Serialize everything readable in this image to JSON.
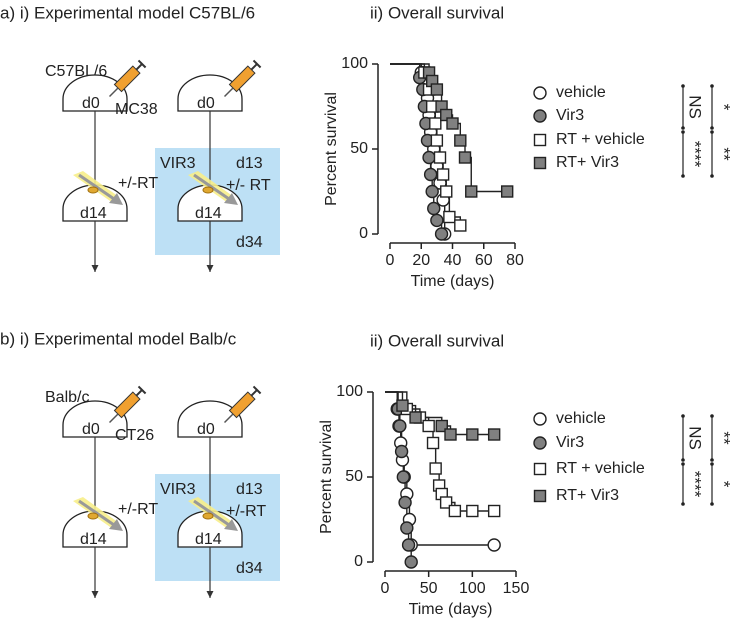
{
  "panels": [
    {
      "title": "a) i) Experimental model C57BL/6",
      "left": {
        "strain": "C57BL/6",
        "day0": "d0",
        "tumor": "MC38",
        "rt": "+/-RT",
        "day14": "d14"
      },
      "right": {
        "day0": "d0",
        "treatment": "VIR3",
        "day13": "d13",
        "rt": "+/- RT",
        "day14": "d14",
        "day34": "d34"
      }
    },
    {
      "title": "b) i) Experimental model Balb/c",
      "left": {
        "strain": "Balb/c",
        "day0": "d0",
        "tumor": "CT26",
        "rt": "+/-RT",
        "day14": "d14"
      },
      "right": {
        "day0": "d0",
        "treatment": "VIR3",
        "day13": "d13",
        "rt": "+/-RT",
        "day14": "d14",
        "day34": "d34"
      }
    }
  ],
  "chart_data": [
    {
      "type": "step",
      "title": "ii) Overall survival",
      "xlabel": "Time (days)",
      "ylabel": "Percent survival",
      "xlim": [
        0,
        80
      ],
      "xticks": [
        0,
        20,
        40,
        60,
        80
      ],
      "ylim": [
        0,
        100
      ],
      "yticks": [
        0,
        50,
        100
      ],
      "series": [
        {
          "name": "vehicle",
          "marker": "circle",
          "color": "#ffffff",
          "x": [
            0,
            20,
            22,
            24,
            25,
            26,
            28,
            30,
            32,
            34,
            35
          ],
          "values": [
            100,
            95,
            90,
            80,
            70,
            60,
            50,
            40,
            30,
            20,
            0
          ]
        },
        {
          "name": "Vir3",
          "marker": "circle",
          "color": "#808080",
          "x": [
            0,
            19,
            21,
            22,
            23,
            24,
            25,
            26,
            27,
            28,
            30,
            33
          ],
          "values": [
            100,
            92,
            85,
            75,
            65,
            55,
            45,
            35,
            25,
            15,
            8,
            0
          ]
        },
        {
          "name": "RT + vehicle",
          "marker": "square",
          "color": "#ffffff",
          "x": [
            0,
            22,
            25,
            27,
            29,
            30,
            32,
            34,
            36,
            38,
            45
          ],
          "values": [
            100,
            95,
            85,
            75,
            65,
            55,
            45,
            35,
            25,
            10,
            5
          ]
        },
        {
          "name": "RT+ Vir3",
          "marker": "square",
          "color": "#808080",
          "x": [
            0,
            25,
            27,
            30,
            33,
            36,
            40,
            45,
            48,
            52,
            75
          ],
          "values": [
            100,
            95,
            90,
            85,
            75,
            70,
            65,
            55,
            45,
            25,
            25
          ]
        }
      ],
      "annotations": [
        "NS",
        "****",
        "*",
        "**"
      ]
    },
    {
      "type": "step",
      "title": "ii) Overall survival",
      "xlabel": "Time (days)",
      "ylabel": "Percent survival",
      "xlim": [
        0,
        150
      ],
      "xticks": [
        0,
        50,
        100,
        150
      ],
      "ylim": [
        0,
        100
      ],
      "yticks": [
        0,
        50,
        100
      ],
      "series": [
        {
          "name": "vehicle",
          "marker": "circle",
          "color": "#ffffff",
          "x": [
            0,
            14,
            16,
            18,
            20,
            22,
            25,
            28,
            30,
            125
          ],
          "values": [
            100,
            90,
            80,
            70,
            60,
            50,
            40,
            25,
            10,
            10
          ]
        },
        {
          "name": "Vir3",
          "marker": "circle",
          "color": "#808080",
          "x": [
            0,
            15,
            17,
            19,
            21,
            23,
            25,
            27,
            30
          ],
          "values": [
            100,
            90,
            80,
            65,
            50,
            35,
            20,
            10,
            0
          ]
        },
        {
          "name": "RT + vehicle",
          "marker": "square",
          "color": "#ffffff",
          "x": [
            0,
            25,
            40,
            50,
            55,
            58,
            62,
            65,
            70,
            80,
            100,
            125
          ],
          "values": [
            100,
            90,
            85,
            80,
            70,
            55,
            45,
            40,
            35,
            30,
            30,
            30
          ]
        },
        {
          "name": "RT+ Vir3",
          "marker": "square",
          "color": "#808080",
          "x": [
            0,
            20,
            35,
            65,
            75,
            100,
            125
          ],
          "values": [
            100,
            92,
            85,
            80,
            75,
            75,
            75
          ]
        }
      ],
      "annotations": [
        "NS",
        "****",
        "**",
        "*"
      ]
    }
  ]
}
